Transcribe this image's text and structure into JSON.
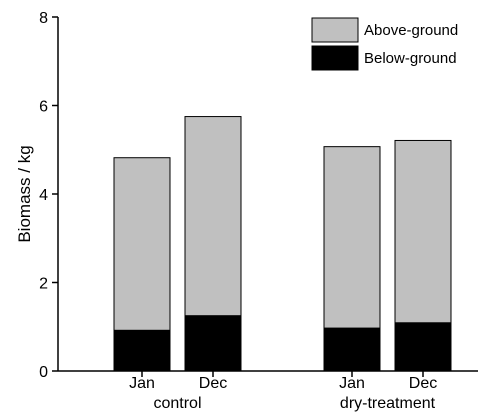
{
  "chart_data": {
    "type": "bar",
    "stacked": true,
    "title": "",
    "xlabel": "",
    "ylabel": "Biomass / kg",
    "ylim": [
      0,
      8
    ],
    "yticks": [
      "0",
      "2",
      "4",
      "6",
      "8"
    ],
    "grid": false,
    "legend_position": "top-right",
    "groups": [
      {
        "label": "control",
        "categories": [
          "Jan",
          "Dec"
        ]
      },
      {
        "label": "dry-treatment",
        "categories": [
          "Jan",
          "Dec"
        ]
      }
    ],
    "categories": [
      "Jan",
      "Dec",
      "Jan",
      "Dec"
    ],
    "series": [
      {
        "name": "Below-ground",
        "color": "#000000",
        "values": [
          0.92,
          1.25,
          0.97,
          1.09
        ]
      },
      {
        "name": "Above-ground",
        "color": "#c0c0c0",
        "values": [
          3.9,
          4.5,
          4.1,
          4.12
        ]
      }
    ],
    "legend": [
      "Above-ground",
      "Below-ground"
    ]
  }
}
